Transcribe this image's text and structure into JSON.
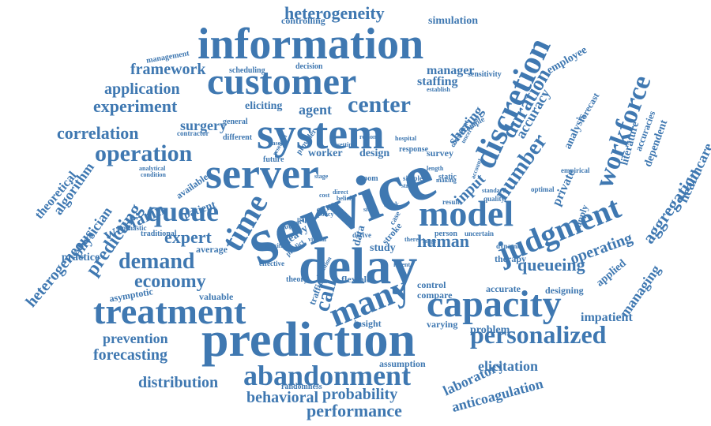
{
  "word_color": "#3f78b1",
  "background": "#ffffff",
  "words": [
    {
      "text": "service"
    },
    {
      "text": "system"
    },
    {
      "text": "delay"
    },
    {
      "text": "prediction"
    },
    {
      "text": "information"
    },
    {
      "text": "customer"
    },
    {
      "text": "server"
    },
    {
      "text": "model"
    },
    {
      "text": "capacity"
    },
    {
      "text": "treatment"
    },
    {
      "text": "judgment"
    },
    {
      "text": "abandonment"
    },
    {
      "text": "time"
    },
    {
      "text": "queue"
    },
    {
      "text": "many"
    },
    {
      "text": "discretion"
    },
    {
      "text": "workforce"
    },
    {
      "text": "center"
    },
    {
      "text": "personalized"
    },
    {
      "text": "operation"
    },
    {
      "text": "demand"
    },
    {
      "text": "number"
    },
    {
      "text": "economy"
    },
    {
      "text": "call"
    },
    {
      "text": "duration"
    },
    {
      "text": "heterogeneity"
    },
    {
      "text": "experiment"
    },
    {
      "text": "correlation"
    },
    {
      "text": "human"
    },
    {
      "text": "predicting"
    },
    {
      "text": "expert"
    },
    {
      "text": "aggregation"
    },
    {
      "text": "queueing"
    },
    {
      "text": "healthcare"
    },
    {
      "text": "performance"
    },
    {
      "text": "probability"
    },
    {
      "text": "framework"
    },
    {
      "text": "application"
    },
    {
      "text": "surgery"
    },
    {
      "text": "warfarin"
    },
    {
      "text": "input"
    },
    {
      "text": "accuracy"
    },
    {
      "text": "operating"
    },
    {
      "text": "managing"
    },
    {
      "text": "forecasting"
    },
    {
      "text": "prevention"
    },
    {
      "text": "distribution"
    },
    {
      "text": "behavioral"
    },
    {
      "text": "elicitation"
    },
    {
      "text": "laboratory"
    },
    {
      "text": "anticoagulation"
    },
    {
      "text": "impatient"
    },
    {
      "text": "physician"
    },
    {
      "text": "heterogeneous"
    },
    {
      "text": "algorithm"
    },
    {
      "text": "theoretical"
    },
    {
      "text": "agent"
    },
    {
      "text": "sharing"
    },
    {
      "text": "manager"
    },
    {
      "text": "staffing"
    },
    {
      "text": "employee"
    },
    {
      "text": "analysis"
    },
    {
      "text": "private"
    },
    {
      "text": "literature"
    },
    {
      "text": "dependent"
    },
    {
      "text": "supply"
    },
    {
      "text": "applied"
    },
    {
      "text": "design"
    },
    {
      "text": "worker"
    },
    {
      "text": "study"
    },
    {
      "text": "error"
    },
    {
      "text": "heavy"
    },
    {
      "text": "data"
    },
    {
      "text": "stroke"
    },
    {
      "text": "patient"
    },
    {
      "text": "available"
    },
    {
      "text": "average"
    },
    {
      "text": "practice"
    },
    {
      "text": "valuable"
    },
    {
      "text": "asymptotic"
    },
    {
      "text": "flexible"
    },
    {
      "text": "control"
    },
    {
      "text": "compare"
    },
    {
      "text": "problem"
    },
    {
      "text": "insight"
    },
    {
      "text": "varying"
    },
    {
      "text": "assumption"
    },
    {
      "text": "randomness"
    },
    {
      "text": "therapy"
    },
    {
      "text": "accurate"
    },
    {
      "text": "designing"
    },
    {
      "text": "simulation"
    },
    {
      "text": "controlling"
    },
    {
      "text": "management"
    },
    {
      "text": "scheduling"
    },
    {
      "text": "decision"
    },
    {
      "text": "eliciting"
    },
    {
      "text": "general"
    },
    {
      "text": "different"
    },
    {
      "text": "contractor"
    },
    {
      "text": "sensitivity"
    },
    {
      "text": "establish"
    },
    {
      "text": "forecast"
    },
    {
      "text": "accuracies"
    },
    {
      "text": "empirical"
    },
    {
      "text": "optimal"
    },
    {
      "text": "quality"
    },
    {
      "text": "result"
    },
    {
      "text": "person"
    },
    {
      "text": "uncertain"
    },
    {
      "text": "dynamic"
    },
    {
      "text": "traffic"
    },
    {
      "text": "theory"
    },
    {
      "text": "effective"
    },
    {
      "text": "stochastic"
    },
    {
      "text": "traditional"
    },
    {
      "text": "analytical"
    },
    {
      "text": "condition"
    },
    {
      "text": "future"
    },
    {
      "text": "provider"
    },
    {
      "text": "research"
    },
    {
      "text": "room"
    },
    {
      "text": "static"
    },
    {
      "text": "survey"
    },
    {
      "text": "support"
    },
    {
      "text": "paper"
    },
    {
      "text": "policy"
    },
    {
      "text": "case"
    },
    {
      "text": "work"
    },
    {
      "text": "simple"
    },
    {
      "text": "stage"
    },
    {
      "text": "direct"
    },
    {
      "text": "cost"
    },
    {
      "text": "belief"
    },
    {
      "text": "derive"
    },
    {
      "text": "predict"
    },
    {
      "text": "specific"
    },
    {
      "text": "virtual"
    },
    {
      "text": "intuition"
    },
    {
      "text": "recent"
    },
    {
      "text": "response"
    },
    {
      "text": "length"
    },
    {
      "text": "consistent"
    },
    {
      "text": "example"
    },
    {
      "text": "uncertainty"
    },
    {
      "text": "hospital"
    },
    {
      "text": "standard"
    },
    {
      "text": "account"
    },
    {
      "text": "making"
    },
    {
      "text": "strong"
    },
    {
      "text": "setting"
    },
    {
      "text": "region"
    },
    {
      "text": "based"
    },
    {
      "text": "side"
    },
    {
      "text": "there"
    },
    {
      "text": "large"
    }
  ]
}
